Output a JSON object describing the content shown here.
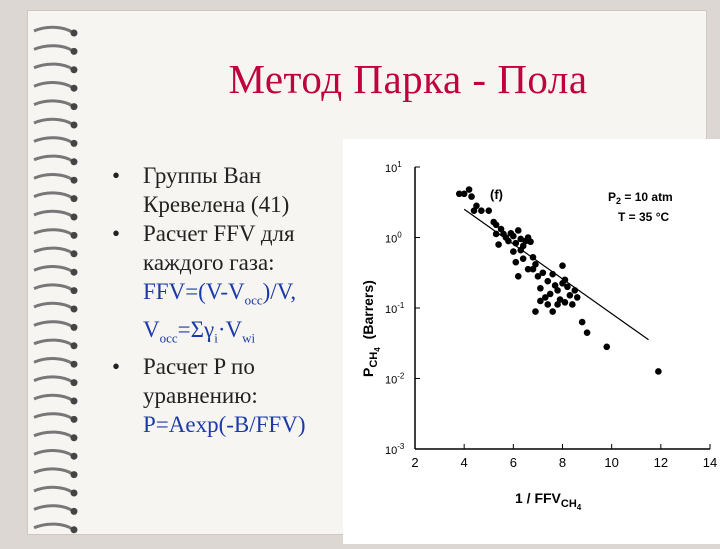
{
  "slide": {
    "title": "Метод Парка - Пола",
    "bullet_symbol": "•",
    "bullets": [
      {
        "lines": [
          "Группы Ван",
          "Кревелена (41)"
        ]
      },
      {
        "lines": [
          "Расчет FFV для",
          "каждого газа:"
        ]
      },
      {
        "lines": [
          "Расчет P по",
          "уравнению:"
        ]
      }
    ],
    "formula1": {
      "a": "FFV=(V-V",
      "sub1": "occ",
      "b": ")/V,",
      "c": "V",
      "sub2": "occ",
      "d": "=Σγ",
      "sub3": "i",
      "e": "·V",
      "sub4": "wi"
    },
    "formula2": "P=Aexp(-B/FFV)"
  },
  "colors": {
    "title": "#c0003f",
    "formula": "#1b3aa8",
    "background": "#ddd7d3",
    "page": "#f7f5f2"
  },
  "chart_data": {
    "type": "scatter",
    "panel_label": "(f)",
    "annotation_line1": "P",
    "annotation_line1_sub": "2",
    "annotation_line1_rest": " = 10 atm",
    "annotation_line2": "T = 35 °C",
    "xlabel": "1 / FFV",
    "xlabel_sub": "CH",
    "xlabel_subsub": "4",
    "ylabel": "P",
    "ylabel_sub": "CH",
    "ylabel_subsub": "4",
    "ylabel_rest": "(Barrers)",
    "xlim": [
      2,
      14
    ],
    "ylim_log10": [
      -3,
      1
    ],
    "y_scale": "log",
    "x_ticks": [
      "2",
      "4",
      "6",
      "8",
      "10",
      "12",
      "14"
    ],
    "y_ticks": [
      {
        "base": "10",
        "exp": "1",
        "value": 1
      },
      {
        "base": "10",
        "exp": "0",
        "value": 0
      },
      {
        "base": "10",
        "exp": "-1",
        "value": -1
      },
      {
        "base": "10",
        "exp": "-2",
        "value": -2
      },
      {
        "base": "10",
        "exp": "-3",
        "value": -3
      }
    ],
    "fit_line_log10": {
      "x": [
        4.0,
        11.5
      ],
      "y": [
        0.4,
        -1.45
      ]
    },
    "points_log10": [
      [
        3.8,
        0.62
      ],
      [
        4.0,
        0.62
      ],
      [
        4.2,
        0.68
      ],
      [
        4.3,
        0.58
      ],
      [
        4.4,
        0.38
      ],
      [
        4.5,
        0.45
      ],
      [
        4.7,
        0.38
      ],
      [
        5.0,
        0.38
      ],
      [
        5.2,
        0.22
      ],
      [
        5.3,
        0.18
      ],
      [
        5.3,
        0.05
      ],
      [
        5.4,
        -0.1
      ],
      [
        5.5,
        0.12
      ],
      [
        5.6,
        0.05
      ],
      [
        5.7,
        0.0
      ],
      [
        5.8,
        -0.05
      ],
      [
        5.9,
        0.06
      ],
      [
        6.0,
        0.02
      ],
      [
        6.1,
        -0.08
      ],
      [
        6.2,
        0.1
      ],
      [
        6.3,
        -0.02
      ],
      [
        6.3,
        -0.18
      ],
      [
        6.4,
        -0.12
      ],
      [
        6.5,
        -0.05
      ],
      [
        6.6,
        0.0
      ],
      [
        6.7,
        -0.06
      ],
      [
        6.0,
        -0.2
      ],
      [
        6.1,
        -0.35
      ],
      [
        6.4,
        -0.3
      ],
      [
        6.6,
        -0.45
      ],
      [
        6.8,
        -0.28
      ],
      [
        6.9,
        -0.38
      ],
      [
        7.0,
        -0.55
      ],
      [
        7.1,
        -0.72
      ],
      [
        7.2,
        -0.5
      ],
      [
        7.3,
        -0.85
      ],
      [
        7.4,
        -0.62
      ],
      [
        7.5,
        -0.8
      ],
      [
        7.6,
        -0.52
      ],
      [
        7.7,
        -0.68
      ],
      [
        7.8,
        -0.75
      ],
      [
        7.9,
        -0.88
      ],
      [
        8.0,
        -0.65
      ],
      [
        8.1,
        -0.92
      ],
      [
        8.2,
        -0.7
      ],
      [
        8.3,
        -0.82
      ],
      [
        8.4,
        -0.95
      ],
      [
        8.5,
        -0.75
      ],
      [
        8.6,
        -0.85
      ],
      [
        8.8,
        -1.2
      ],
      [
        9.0,
        -1.35
      ],
      [
        7.4,
        -0.95
      ],
      [
        7.6,
        -1.05
      ],
      [
        6.9,
        -1.05
      ],
      [
        7.1,
        -0.9
      ],
      [
        7.8,
        -0.95
      ],
      [
        8.1,
        -0.6
      ],
      [
        9.8,
        -1.55
      ],
      [
        11.9,
        -1.9
      ],
      [
        8.0,
        -0.4
      ],
      [
        6.2,
        -0.55
      ],
      [
        6.8,
        -0.45
      ]
    ]
  }
}
